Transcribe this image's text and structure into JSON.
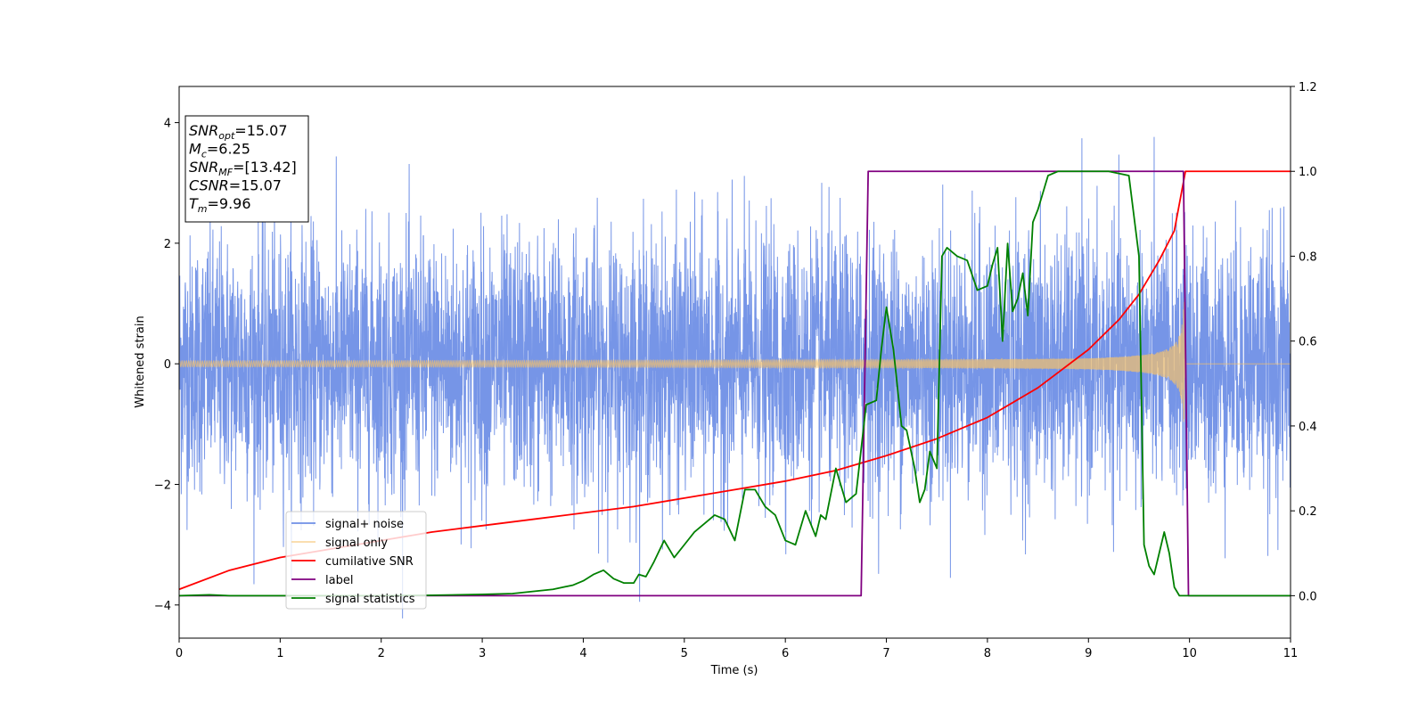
{
  "chart_data": {
    "type": "line",
    "title": "",
    "xlabel": "Time (s)",
    "ylabel": "Whitened strain",
    "xlim": [
      0,
      11
    ],
    "ylim_left": [
      -4.55,
      4.6
    ],
    "ylim_right": [
      -0.1,
      1.2
    ],
    "x_ticks": [
      0,
      1,
      2,
      3,
      4,
      5,
      6,
      7,
      8,
      9,
      10,
      11
    ],
    "y_left_ticks": [
      4,
      2,
      0,
      -2,
      -4
    ],
    "y_right_ticks": [
      1.2,
      1.0,
      0.8,
      0.6,
      0.4,
      0.2,
      0.0
    ],
    "y_left_tick_labels": [
      "4",
      "2",
      "0",
      "−2",
      "−4"
    ],
    "y_right_tick_labels": [
      "1.2",
      "1.0",
      "0.8",
      "0.6",
      "0.4",
      "0.2",
      "0.0"
    ],
    "grid": false,
    "legend_placement": "lower-left",
    "info_box": {
      "placement": "top-left",
      "lines": [
        {
          "base": "SNR",
          "sub": "opt",
          "value": "=15.07"
        },
        {
          "base": "M",
          "sub": "c",
          "value": "=6.25"
        },
        {
          "base": "SNR",
          "sub": "MF",
          "value": "=[13.42]"
        },
        {
          "base": "CSNR",
          "sub": "",
          "value": "=15.07"
        },
        {
          "base": "T",
          "sub": "m",
          "value": "=9.96"
        }
      ]
    },
    "series": [
      {
        "name": "signal+ noise",
        "axis": "left",
        "color": "#6f8fe6",
        "style": "noise",
        "noise_std": 1.0,
        "x_range": [
          0,
          11
        ],
        "note_values": "dense whitened noise plus signal"
      },
      {
        "name": "signal only",
        "axis": "left",
        "color": "#f5c26b",
        "style": "chirp",
        "amplitude_start": 0.05,
        "amplitude_end": 1.1,
        "t_merge": 9.96
      },
      {
        "name": "cumilative SNR",
        "axis": "right",
        "color": "#ff0000",
        "x": [
          0,
          0.5,
          1,
          1.5,
          2,
          2.5,
          3,
          3.5,
          4,
          4.5,
          5,
          5.5,
          6,
          6.5,
          7,
          7.5,
          8,
          8.5,
          9,
          9.3,
          9.5,
          9.7,
          9.85,
          9.96,
          10,
          11
        ],
        "y": [
          0.015,
          0.06,
          0.09,
          0.11,
          0.13,
          0.15,
          0.165,
          0.18,
          0.195,
          0.21,
          0.23,
          0.25,
          0.27,
          0.295,
          0.33,
          0.37,
          0.42,
          0.49,
          0.58,
          0.65,
          0.71,
          0.79,
          0.86,
          1.0,
          1.0,
          1.0
        ]
      },
      {
        "name": "label",
        "axis": "right",
        "color": "#800080",
        "x": [
          0,
          6.75,
          6.82,
          9.94,
          9.99,
          11
        ],
        "y": [
          0,
          0,
          1,
          1,
          0,
          0
        ]
      },
      {
        "name": "signal statistics",
        "axis": "right",
        "color": "#008000",
        "x": [
          0,
          0.3,
          0.5,
          1,
          1.5,
          2,
          2.5,
          3,
          3.3,
          3.5,
          3.7,
          3.9,
          4.0,
          4.1,
          4.2,
          4.3,
          4.4,
          4.5,
          4.55,
          4.62,
          4.7,
          4.8,
          4.9,
          5.0,
          5.1,
          5.2,
          5.3,
          5.4,
          5.5,
          5.6,
          5.7,
          5.75,
          5.8,
          5.9,
          6.0,
          6.1,
          6.2,
          6.3,
          6.35,
          6.4,
          6.5,
          6.6,
          6.65,
          6.7,
          6.8,
          6.9,
          6.95,
          7.0,
          7.07,
          7.15,
          7.2,
          7.28,
          7.33,
          7.38,
          7.43,
          7.5,
          7.55,
          7.6,
          7.7,
          7.8,
          7.9,
          8.0,
          8.05,
          8.1,
          8.15,
          8.2,
          8.25,
          8.3,
          8.35,
          8.4,
          8.45,
          8.5,
          8.6,
          8.7,
          8.8,
          9.0,
          9.2,
          9.4,
          9.5,
          9.55,
          9.6,
          9.65,
          9.7,
          9.75,
          9.8,
          9.85,
          9.9,
          10.0,
          11
        ],
        "y": [
          0.0,
          0.002,
          0.0,
          0.0,
          0.0,
          0.0,
          0.001,
          0.003,
          0.005,
          0.01,
          0.015,
          0.025,
          0.035,
          0.05,
          0.06,
          0.04,
          0.03,
          0.03,
          0.05,
          0.045,
          0.08,
          0.13,
          0.09,
          0.12,
          0.15,
          0.17,
          0.19,
          0.18,
          0.13,
          0.25,
          0.25,
          0.23,
          0.21,
          0.19,
          0.13,
          0.12,
          0.2,
          0.14,
          0.19,
          0.18,
          0.3,
          0.22,
          0.23,
          0.24,
          0.45,
          0.46,
          0.58,
          0.68,
          0.58,
          0.4,
          0.39,
          0.3,
          0.22,
          0.25,
          0.34,
          0.3,
          0.8,
          0.82,
          0.8,
          0.79,
          0.72,
          0.73,
          0.78,
          0.82,
          0.6,
          0.83,
          0.67,
          0.7,
          0.76,
          0.66,
          0.88,
          0.91,
          0.99,
          1.0,
          1.0,
          1.0,
          1.0,
          0.99,
          0.8,
          0.12,
          0.07,
          0.05,
          0.1,
          0.15,
          0.1,
          0.02,
          0.0,
          0.0,
          0.0
        ]
      }
    ]
  }
}
